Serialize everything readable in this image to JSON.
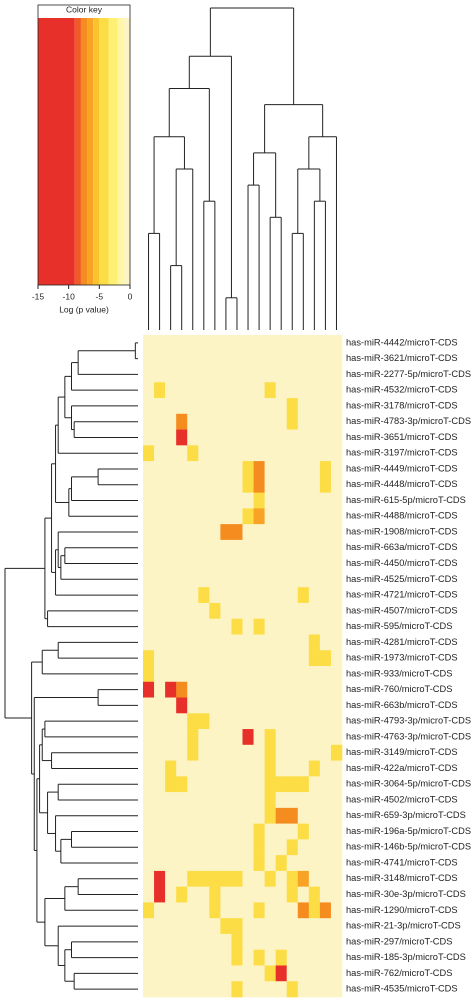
{
  "chart_data": {
    "type": "heatmap",
    "rows": [
      "has-miR-4442/microT-CDS",
      "has-miR-3621/microT-CDS",
      "has-miR-2277-5p/microT-CDS",
      "has-miR-4532/microT-CDS",
      "has-miR-3178/microT-CDS",
      "has-miR-4783-3p/microT-CDS",
      "has-miR-3651/microT-CDS",
      "has-miR-3197/microT-CDS",
      "has-miR-4449/microT-CDS",
      "has-miR-4448/microT-CDS",
      "has-miR-615-5p/microT-CDS",
      "has-miR-4488/microT-CDS",
      "has-miR-1908/microT-CDS",
      "has-miR-663a/microT-CDS",
      "has-miR-4450/microT-CDS",
      "has-miR-4525/microT-CDS",
      "has-miR-4721/microT-CDS",
      "has-miR-4507/microT-CDS",
      "has-miR-595/microT-CDS",
      "has-miR-4281/microT-CDS",
      "has-miR-1973/microT-CDS",
      "has-miR-933/microT-CDS",
      "has-miR-760/microT-CDS",
      "has-miR-663b/microT-CDS",
      "has-miR-4793-3p/microT-CDS",
      "has-miR-4763-3p/microT-CDS",
      "has-miR-3149/microT-CDS",
      "has-miR-422a/microT-CDS",
      "has-miR-3064-5p/microT-CDS",
      "has-miR-4502/microT-CDS",
      "has-miR-659-3p/microT-CDS",
      "has-miR-196a-5p/microT-CDS",
      "has-miR-146b-5p/microT-CDS",
      "has-miR-4741/microT-CDS",
      "has-miR-3148/microT-CDS",
      "has-miR-30e-3p/microT-CDS",
      "has-miR-1290/microT-CDS",
      "has-miR-21-3p/microT-CDS",
      "has-miR-297/microT-CDS",
      "has-miR-185-3p/microT-CDS",
      "has-miR-762/microT-CDS",
      "has-miR-4535/microT-CDS"
    ],
    "values": [
      [
        0,
        0,
        0,
        0,
        0,
        0,
        0,
        0,
        0,
        0,
        0,
        0,
        0,
        0,
        0,
        0,
        0,
        0
      ],
      [
        0,
        0,
        0,
        0,
        0,
        0,
        0,
        0,
        0,
        0,
        0,
        0,
        0,
        0,
        0,
        0,
        0,
        0
      ],
      [
        0,
        0,
        0,
        0,
        0,
        0,
        0,
        0,
        0,
        0,
        0,
        0,
        0,
        0,
        0,
        0,
        0,
        0
      ],
      [
        0,
        -4,
        0,
        0,
        0,
        0,
        0,
        0,
        0,
        0,
        0,
        -4,
        0,
        0,
        0,
        0,
        0,
        0
      ],
      [
        0,
        0,
        0,
        0,
        0,
        0,
        0,
        0,
        0,
        0,
        0,
        0,
        0,
        -4,
        0,
        0,
        0,
        0
      ],
      [
        0,
        0,
        0,
        -7,
        0,
        0,
        0,
        0,
        0,
        0,
        0,
        0,
        0,
        -4,
        0,
        0,
        0,
        0
      ],
      [
        0,
        0,
        0,
        -11,
        0,
        0,
        0,
        0,
        0,
        0,
        0,
        0,
        0,
        0,
        0,
        0,
        0,
        0
      ],
      [
        -4,
        0,
        0,
        0,
        -4,
        0,
        0,
        0,
        0,
        0,
        0,
        0,
        0,
        0,
        0,
        0,
        0,
        0
      ],
      [
        0,
        0,
        0,
        0,
        0,
        0,
        0,
        0,
        0,
        -4,
        -7,
        0,
        0,
        0,
        0,
        0,
        -4,
        0
      ],
      [
        0,
        0,
        0,
        0,
        0,
        0,
        0,
        0,
        0,
        -4,
        -7,
        0,
        0,
        0,
        0,
        0,
        -4,
        0
      ],
      [
        0,
        0,
        0,
        0,
        0,
        0,
        0,
        0,
        0,
        0,
        -4,
        0,
        0,
        0,
        0,
        0,
        0,
        0
      ],
      [
        0,
        0,
        0,
        0,
        0,
        0,
        0,
        0,
        0,
        -4,
        -6,
        0,
        0,
        0,
        0,
        0,
        0,
        0
      ],
      [
        0,
        0,
        0,
        0,
        0,
        0,
        0,
        -7,
        -7,
        0,
        0,
        0,
        0,
        0,
        0,
        0,
        0,
        0
      ],
      [
        0,
        0,
        0,
        0,
        0,
        0,
        0,
        0,
        0,
        0,
        0,
        0,
        0,
        0,
        0,
        0,
        0,
        0
      ],
      [
        0,
        0,
        0,
        0,
        0,
        0,
        0,
        0,
        0,
        0,
        0,
        0,
        0,
        0,
        0,
        0,
        0,
        0
      ],
      [
        0,
        0,
        0,
        0,
        0,
        0,
        0,
        0,
        0,
        0,
        0,
        0,
        0,
        0,
        0,
        0,
        0,
        0
      ],
      [
        0,
        0,
        0,
        0,
        0,
        -4,
        0,
        0,
        0,
        0,
        0,
        0,
        0,
        0,
        -4,
        0,
        0,
        0
      ],
      [
        0,
        0,
        0,
        0,
        0,
        0,
        -4,
        0,
        0,
        0,
        0,
        0,
        0,
        0,
        0,
        0,
        0,
        0
      ],
      [
        0,
        0,
        0,
        0,
        0,
        0,
        0,
        0,
        -4,
        0,
        -4,
        0,
        0,
        0,
        0,
        0,
        0,
        0
      ],
      [
        0,
        0,
        0,
        0,
        0,
        0,
        0,
        0,
        0,
        0,
        0,
        0,
        0,
        0,
        0,
        -4,
        0,
        0
      ],
      [
        -4,
        0,
        0,
        0,
        0,
        0,
        0,
        0,
        0,
        0,
        0,
        0,
        0,
        0,
        0,
        -4,
        -4,
        0
      ],
      [
        -4,
        0,
        0,
        0,
        0,
        0,
        0,
        0,
        0,
        0,
        0,
        0,
        0,
        0,
        0,
        0,
        0,
        0
      ],
      [
        -12,
        0,
        -11,
        -7,
        0,
        0,
        0,
        0,
        0,
        0,
        0,
        0,
        0,
        0,
        0,
        0,
        0,
        0
      ],
      [
        0,
        0,
        0,
        -12,
        0,
        0,
        0,
        0,
        0,
        0,
        0,
        0,
        0,
        0,
        0,
        0,
        0,
        0
      ],
      [
        0,
        0,
        0,
        0,
        -4,
        -4,
        0,
        0,
        0,
        0,
        0,
        0,
        0,
        0,
        0,
        0,
        0,
        0
      ],
      [
        0,
        0,
        0,
        0,
        -4,
        0,
        0,
        0,
        0,
        -11,
        0,
        -4,
        0,
        0,
        0,
        0,
        0,
        0
      ],
      [
        0,
        0,
        0,
        0,
        -4,
        0,
        0,
        0,
        0,
        0,
        0,
        -4,
        0,
        0,
        0,
        0,
        0,
        -4
      ],
      [
        0,
        0,
        -4,
        0,
        0,
        0,
        0,
        0,
        0,
        0,
        0,
        -4,
        0,
        0,
        0,
        -4,
        0,
        0
      ],
      [
        0,
        0,
        -4,
        -4,
        0,
        0,
        0,
        0,
        0,
        0,
        0,
        -4,
        -4,
        -4,
        -4,
        0,
        0,
        0
      ],
      [
        0,
        0,
        0,
        0,
        0,
        0,
        0,
        0,
        0,
        0,
        0,
        -4,
        0,
        0,
        0,
        0,
        0,
        0
      ],
      [
        0,
        0,
        0,
        0,
        0,
        0,
        0,
        0,
        0,
        0,
        0,
        -4,
        -7,
        -7,
        0,
        0,
        0,
        0
      ],
      [
        0,
        0,
        0,
        0,
        0,
        0,
        0,
        0,
        0,
        0,
        -4,
        0,
        0,
        0,
        -4,
        0,
        0,
        0
      ],
      [
        0,
        0,
        0,
        0,
        0,
        0,
        0,
        0,
        0,
        0,
        -4,
        0,
        0,
        -4,
        0,
        0,
        0,
        0
      ],
      [
        0,
        0,
        0,
        0,
        0,
        0,
        0,
        0,
        0,
        0,
        -4,
        0,
        -4,
        0,
        0,
        0,
        0,
        0
      ],
      [
        0,
        -11,
        0,
        0,
        -4,
        -4,
        -4,
        -4,
        -4,
        0,
        0,
        -4,
        0,
        -4,
        -6,
        0,
        0,
        0
      ],
      [
        0,
        -12,
        0,
        -4,
        0,
        0,
        -4,
        0,
        0,
        0,
        0,
        0,
        0,
        -4,
        0,
        -4,
        0,
        0
      ],
      [
        -4,
        0,
        0,
        0,
        0,
        0,
        -4,
        0,
        0,
        0,
        -4,
        0,
        0,
        0,
        -7,
        -4,
        -7,
        0
      ],
      [
        0,
        0,
        0,
        0,
        0,
        0,
        0,
        -4,
        -4,
        0,
        0,
        0,
        0,
        0,
        0,
        0,
        0,
        0
      ],
      [
        0,
        0,
        0,
        0,
        0,
        0,
        0,
        0,
        -4,
        0,
        0,
        0,
        0,
        0,
        0,
        0,
        0,
        0
      ],
      [
        0,
        0,
        0,
        0,
        0,
        0,
        0,
        0,
        -4,
        0,
        -4,
        0,
        -4,
        0,
        0,
        0,
        0,
        0
      ],
      [
        0,
        0,
        0,
        0,
        0,
        0,
        0,
        0,
        0,
        0,
        0,
        -4,
        -11,
        0,
        0,
        0,
        0,
        0
      ],
      [
        0,
        0,
        0,
        0,
        0,
        0,
        0,
        0,
        -4,
        0,
        0,
        0,
        0,
        -4,
        0,
        0,
        0,
        0
      ]
    ],
    "color_key": {
      "title": "Color key",
      "xlabel": "Log (p value)",
      "xlim": [
        -15,
        0
      ],
      "xticks": [
        -15,
        -10,
        -5,
        0
      ],
      "breaks": [
        -15,
        -9,
        -8,
        -7,
        -6,
        -5,
        -3.5,
        -2,
        -1,
        0
      ],
      "colors": [
        "#e8302a",
        "#ef5a26",
        "#f58c20",
        "#f8a326",
        "#fbc22f",
        "#fddd45",
        "#ffef74",
        "#fff7a6",
        "#fcf4c4"
      ]
    }
  }
}
